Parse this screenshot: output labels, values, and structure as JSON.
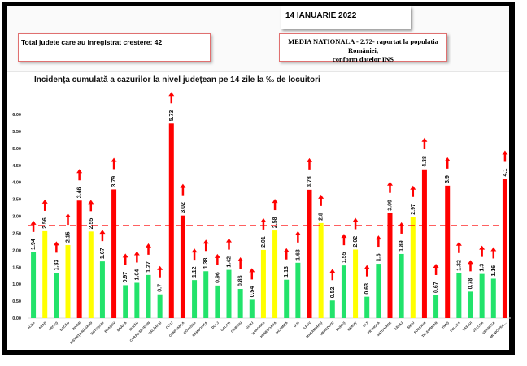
{
  "header": {
    "date": "14 IANUARIE 2022",
    "total_text": "Total judete care au inregistrat crestere: 42",
    "media_line1": "MEDIA NATIONALA - 2.72-  raportat la populatia României,",
    "media_line2": "conform datelor INS"
  },
  "colors": {
    "green": "#22e36b",
    "yellow": "#ffff00",
    "red": "#ff0000",
    "arrow": "#ff0000",
    "reference_line": "#ff0000"
  },
  "chart_data": {
    "type": "bar",
    "title": "Incidența cumulată a cazurilor la nivel județean pe 14 zile la ‰ de locuitori",
    "xlabel": "",
    "ylabel": "",
    "ylim": [
      0,
      6.5
    ],
    "yticks": [
      "0.00",
      "0.50",
      "1.00",
      "1.50",
      "2.00",
      "2.50",
      "3.00",
      "3.50",
      "4.00",
      "4.50",
      "5.00",
      "5.50",
      "6.00"
    ],
    "grid": false,
    "reference_line": {
      "value": 2.72,
      "label": "MEDIA NATIONALA",
      "style": "dashed"
    },
    "categories": [
      "ALBA",
      "ARAD",
      "ARGEȘ",
      "BACĂU",
      "BIHOR",
      "BISTRIȚA-NĂSĂUD",
      "BOTOȘANI",
      "BRAȘOV",
      "BRĂILA",
      "BUZĂU",
      "CARAȘ-SEVERIN",
      "CĂLĂRAȘI",
      "CLUJ",
      "CONSTANȚA",
      "COVASNA",
      "DÂMBOVIȚA",
      "DOLJ",
      "GALAȚI",
      "GIURGIU",
      "GORJ",
      "HARGHITA",
      "HUNEDOARA",
      "IALOMIȚA",
      "IAȘI",
      "ILFOV",
      "MARAMUREȘ",
      "MEHEDINȚI",
      "MUREȘ",
      "NEAMȚ",
      "OLT",
      "PRAHOVA",
      "SATU MARE",
      "SĂLAJ",
      "SIBIU",
      "SUCEAVA",
      "TELEORMAN",
      "TIMIȘ",
      "TULCEA",
      "VASLUI",
      "VÂLCEA",
      "VRANCEA",
      "MUNICIPIUL..."
    ],
    "values": [
      1.94,
      2.56,
      1.33,
      2.15,
      3.46,
      2.55,
      1.67,
      3.79,
      0.97,
      1.04,
      1.27,
      0.7,
      5.73,
      3.02,
      1.12,
      1.38,
      0.96,
      1.42,
      0.86,
      0.54,
      2.01,
      2.58,
      1.13,
      1.63,
      3.78,
      2.8,
      0.52,
      1.55,
      2.02,
      0.63,
      1.6,
      3.09,
      1.89,
      2.97,
      4.38,
      0.67,
      3.9,
      1.32,
      0.78,
      1.3,
      1.16,
      4.1
    ],
    "bar_colors": [
      "green",
      "yellow",
      "green",
      "yellow",
      "red",
      "yellow",
      "green",
      "red",
      "green",
      "green",
      "green",
      "green",
      "red",
      "red",
      "green",
      "green",
      "green",
      "green",
      "green",
      "green",
      "yellow",
      "yellow",
      "green",
      "green",
      "red",
      "yellow",
      "green",
      "green",
      "yellow",
      "green",
      "green",
      "red",
      "green",
      "yellow",
      "red",
      "green",
      "red",
      "green",
      "green",
      "green",
      "green",
      "red"
    ],
    "value_labels": [
      "1.94",
      "2.56",
      "1.33",
      "2.15",
      "3.46",
      "2.55",
      "1.67",
      "3.79",
      "0.97",
      "1.04",
      "1.27",
      "0.7",
      "5.73",
      "3.02",
      "1.12",
      "1.38",
      "0.96",
      "1.42",
      "0.86",
      "0.54",
      "2.01",
      "2.58",
      "1.13",
      "1.63",
      "3.78",
      "2.8",
      "0.52",
      "1.55",
      "2.02",
      "0.63",
      "1.6",
      "3.09",
      "1.89",
      "2.97",
      "4.38",
      "0.67",
      "3.9",
      "1.32",
      "0.78",
      "1.3",
      "1.16",
      "4.1"
    ],
    "trend_marker": "up-arrow"
  }
}
